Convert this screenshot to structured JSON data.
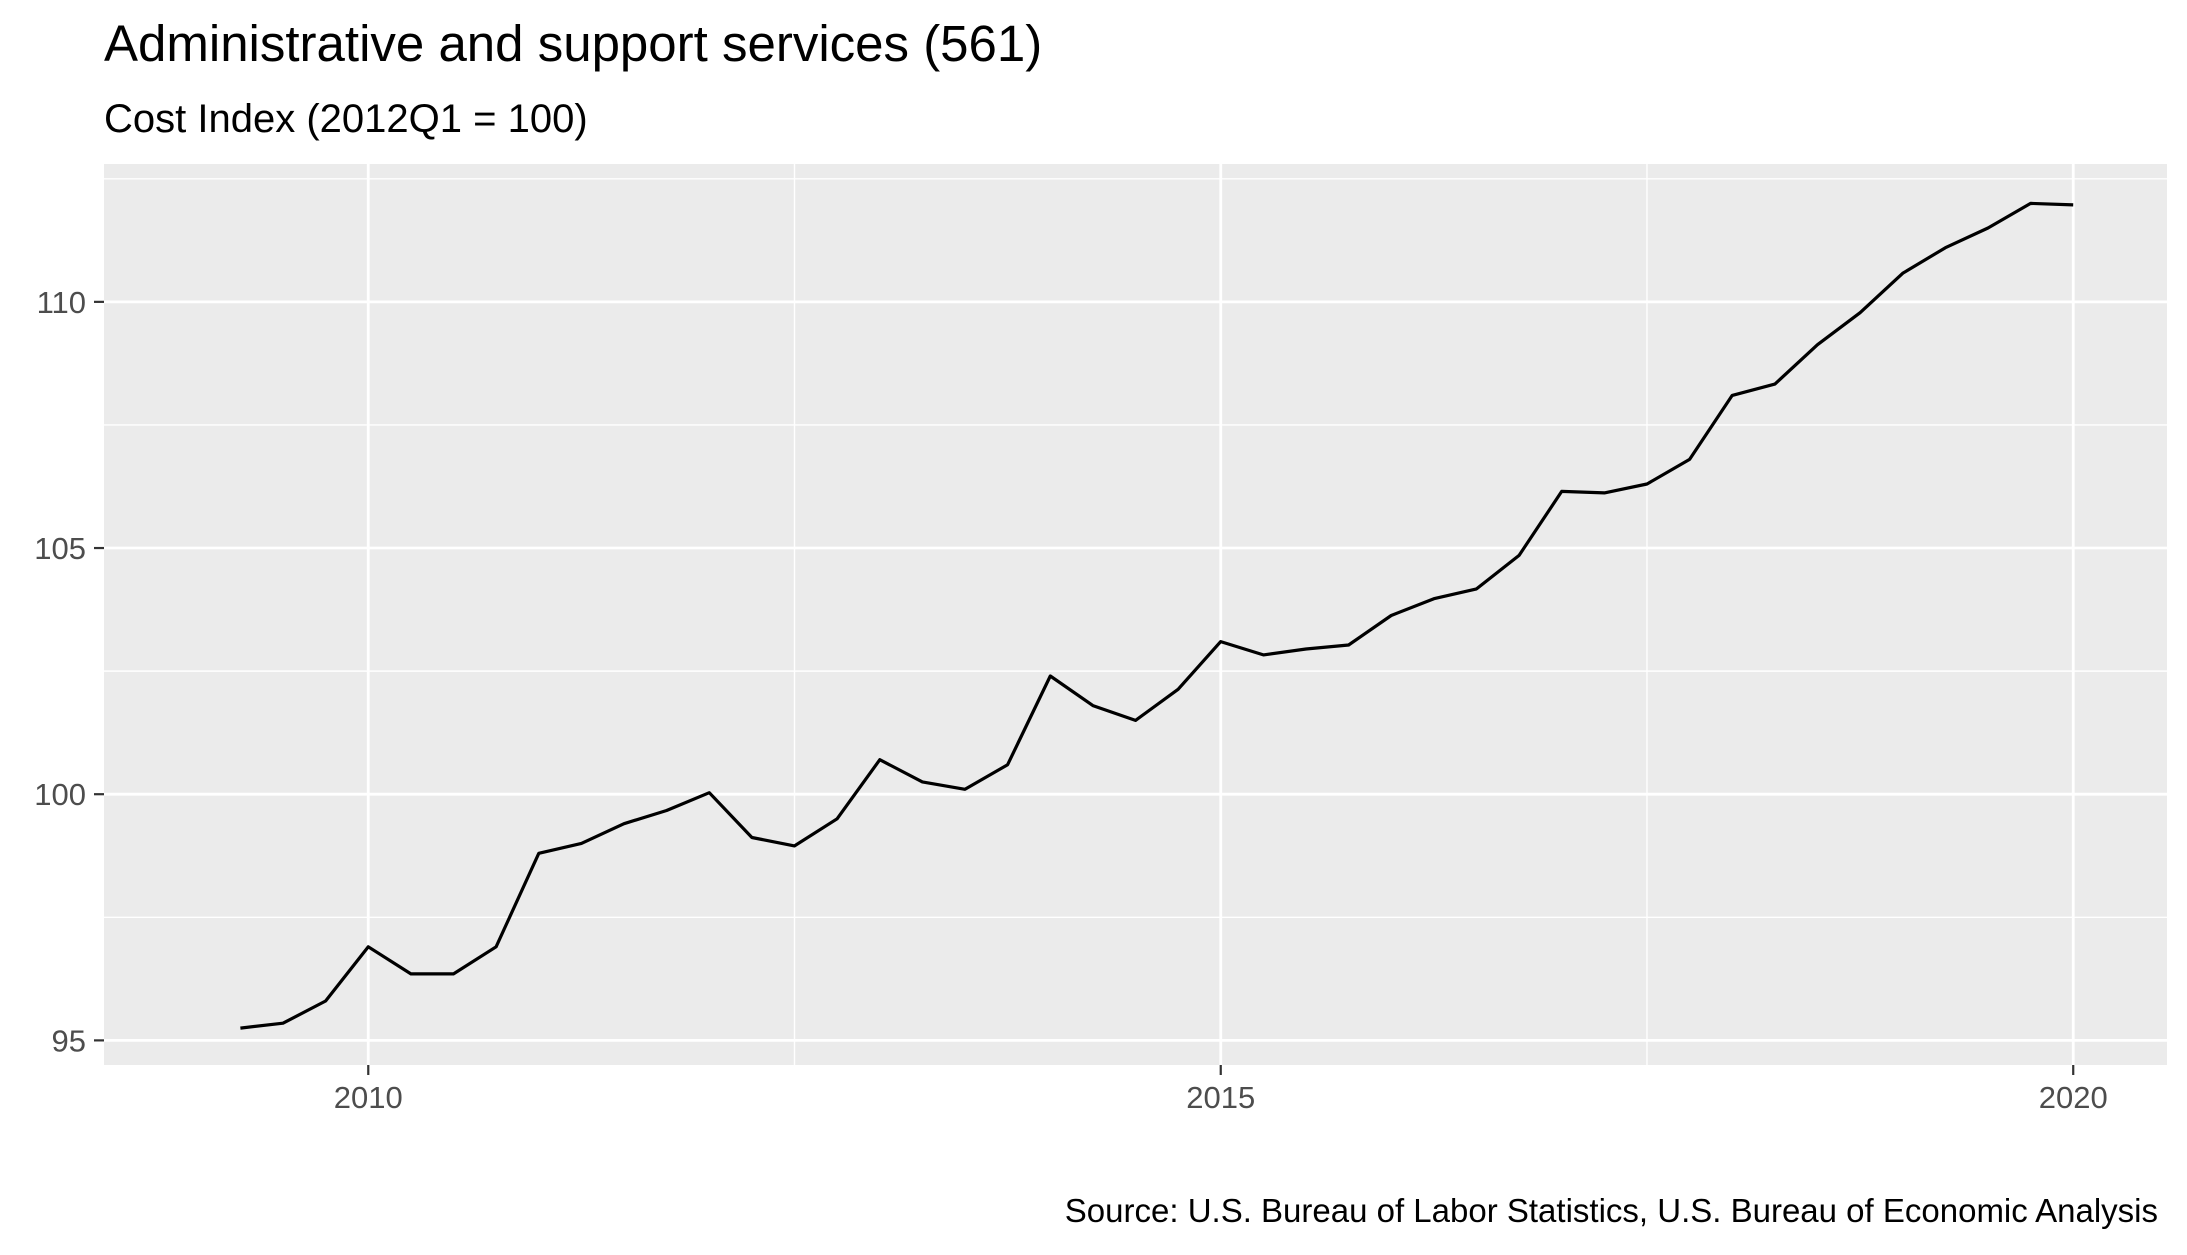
{
  "chart_data": {
    "type": "line",
    "title": "Administrative and support services (561)",
    "subtitle": "Cost Index (2012Q1 = 100)",
    "caption": "Source: U.S. Bureau of Labor Statistics, U.S. Bureau of Economic Analysis",
    "xlabel": "",
    "ylabel": "",
    "xlim": [
      2008.45,
      2020.55
    ],
    "ylim": [
      94.5,
      112.8
    ],
    "x_ticks": [
      2010,
      2015,
      2020
    ],
    "x_tick_labels": [
      "2010",
      "2015",
      "2020"
    ],
    "y_ticks": [
      95,
      100,
      105,
      110
    ],
    "y_tick_labels": [
      "95",
      "100",
      "105",
      "110"
    ],
    "grid": true,
    "colors": {
      "panel": "#ebebeb",
      "grid": "#ffffff",
      "line": "#000000",
      "tick_text": "#4d4d4d"
    },
    "series": [
      {
        "x": [
          2009.25,
          2009.5,
          2009.75,
          2010.0,
          2010.25,
          2010.5,
          2010.75,
          2011.0,
          2011.25,
          2011.5,
          2011.75,
          2012.0,
          2012.25,
          2012.5,
          2012.75,
          2013.0,
          2013.25,
          2013.5,
          2013.75,
          2014.0,
          2014.25,
          2014.5,
          2014.75,
          2015.0,
          2015.25,
          2015.5,
          2015.75,
          2016.0,
          2016.25,
          2016.5,
          2016.75,
          2017.0,
          2017.25,
          2017.5,
          2017.75,
          2018.0,
          2018.25,
          2018.5,
          2018.75,
          2019.0,
          2019.25,
          2019.5,
          2019.75,
          2020.0
        ],
        "values": [
          95.25,
          95.35,
          95.8,
          96.9,
          96.35,
          96.35,
          96.9,
          98.8,
          99.0,
          99.4,
          99.67,
          100.03,
          99.12,
          98.95,
          99.5,
          100.7,
          100.25,
          100.1,
          100.6,
          102.4,
          101.8,
          101.5,
          102.13,
          103.1,
          102.83,
          102.95,
          103.03,
          103.63,
          103.97,
          104.17,
          104.85,
          106.15,
          106.12,
          106.3,
          106.8,
          108.1,
          108.33,
          109.13,
          109.78,
          110.58,
          111.1,
          111.5,
          112.0,
          111.97
        ]
      }
    ]
  }
}
